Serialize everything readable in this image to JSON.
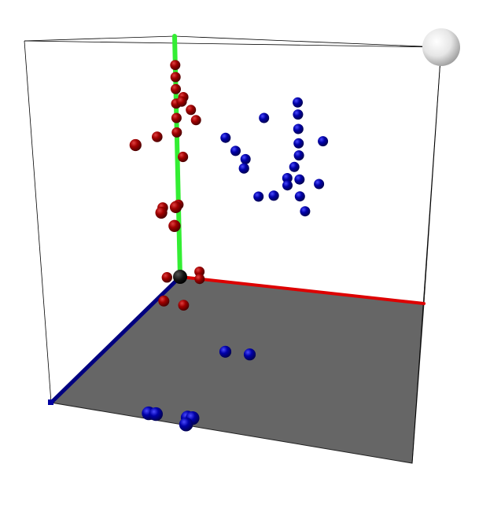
{
  "chart_data": {
    "type": "scatter",
    "dimensions": 3,
    "title": "",
    "xlabel": "",
    "ylabel": "",
    "zlabel": "",
    "xlim": [
      0,
      1
    ],
    "ylim": [
      0,
      1
    ],
    "zlim": [
      0,
      1
    ],
    "grid": false,
    "legend": "none",
    "floor_color": "#666666",
    "axis_colors": {
      "x": "#dd0000",
      "y": "#33ee33",
      "z": "#000080"
    },
    "origin_marker_color": "#000000",
    "corner_sphere_color": "#e6e6e6",
    "series": [
      {
        "color": "#a00000",
        "points": [
          [
            0.0,
            0.88,
            0.0
          ],
          [
            0.0,
            0.83,
            0.0
          ],
          [
            0.0,
            0.78,
            0.0
          ],
          [
            0.0,
            0.72,
            0.0
          ],
          [
            0.0,
            0.66,
            0.0
          ],
          [
            0.0,
            0.6,
            0.0
          ],
          [
            0.05,
            0.76,
            0.05
          ],
          [
            0.08,
            0.66,
            0.0
          ],
          [
            0.05,
            0.53,
            0.05
          ],
          [
            0.2,
            0.55,
            0.5
          ],
          [
            0.26,
            0.58,
            0.5
          ],
          [
            0.28,
            0.53,
            0.55
          ],
          [
            0.1,
            0.82,
            0.5
          ],
          [
            0.0,
            0.66,
            0.15
          ],
          [
            0.03,
            0.75,
            0.0
          ],
          [
            0.06,
            0.7,
            0.0
          ],
          [
            0.0,
            0.35,
            0.12
          ],
          [
            0.0,
            0.3,
            0.0
          ],
          [
            0.08,
            0.03,
            0.0
          ],
          [
            0.08,
            0.0,
            0.0
          ],
          [
            0.05,
            0.02,
            0.22
          ],
          [
            0.12,
            0.0,
            0.2
          ],
          [
            0.0,
            0.05,
            0.1
          ]
        ]
      },
      {
        "color": "#0000a8",
        "points": [
          [
            0.5,
            0.78,
            0.0
          ],
          [
            0.5,
            0.73,
            0.0
          ],
          [
            0.5,
            0.67,
            0.0
          ],
          [
            0.5,
            0.61,
            0.0
          ],
          [
            0.5,
            0.56,
            0.0
          ],
          [
            0.48,
            0.51,
            0.0
          ],
          [
            0.45,
            0.46,
            0.0
          ],
          [
            0.5,
            0.46,
            0.0
          ],
          [
            0.45,
            0.43,
            0.0
          ],
          [
            0.42,
            0.41,
            0.05
          ],
          [
            0.5,
            0.39,
            0.0
          ],
          [
            0.6,
            0.63,
            0.0
          ],
          [
            0.58,
            0.45,
            0.0
          ],
          [
            0.36,
            0.7,
            0.0
          ],
          [
            0.33,
            0.37,
            0.0
          ],
          [
            0.52,
            0.33,
            0.0
          ],
          [
            0.2,
            0.6,
            0.0
          ],
          [
            0.24,
            0.55,
            0.0
          ],
          [
            0.28,
            0.52,
            0.0
          ],
          [
            0.3,
            0.51,
            0.05
          ],
          [
            0.45,
            0.0,
            0.5
          ],
          [
            0.55,
            0.0,
            0.5
          ],
          [
            0.4,
            0.0,
            1.0
          ],
          [
            0.43,
            0.0,
            1.0
          ],
          [
            0.56,
            0.0,
            1.0
          ],
          [
            0.58,
            0.0,
            1.0
          ],
          [
            0.58,
            0.0,
            1.05
          ]
        ]
      }
    ]
  }
}
